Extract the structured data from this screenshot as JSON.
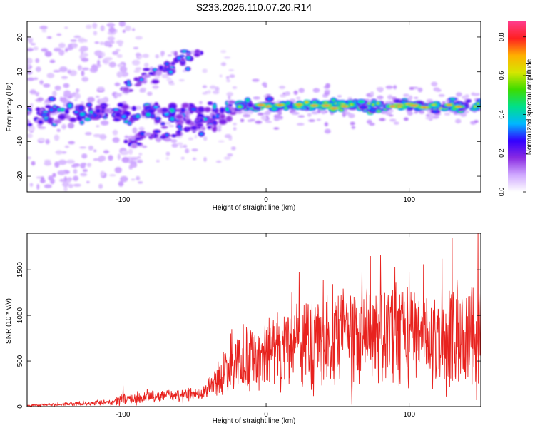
{
  "title": "S233.2026.110.07.20.R14",
  "chart_data": [
    {
      "type": "heatmap",
      "xlabel": "Height of straight line (km)",
      "ylabel": "Frequency (Hz)",
      "xlim": [
        -167,
        150
      ],
      "ylim": [
        -24.5,
        24.5
      ],
      "xticks": [
        -100,
        0,
        100
      ],
      "yticks": [
        -20,
        -10,
        0,
        10,
        20
      ],
      "colorbar": {
        "label": "Normalized spectral amplitude",
        "range": [
          0.0,
          0.88
        ],
        "ticks": [
          0.0,
          0.2,
          0.4,
          0.6,
          0.8
        ],
        "colors": [
          "#ffffff",
          "#cfa8ff",
          "#8a2be2",
          "#3300ff",
          "#00b7ff",
          "#00e08a",
          "#3ddc00",
          "#d6e600",
          "#ffb000",
          "#ff2020",
          "#ff3c8c"
        ]
      },
      "features": [
        {
          "label": "strong band (x from -20 to 150 km)",
          "x": [
            -20,
            150
          ],
          "y_center": 0.3,
          "peak_amplitude": 0.88
        },
        {
          "label": "diffuse band (x from -167 to -20 km)",
          "x": [
            -167,
            -20
          ],
          "y_center": -2,
          "peak_amplitude": 0.45
        },
        {
          "label": "rising branch",
          "from": [
            -100,
            5
          ],
          "to": [
            -45,
            17
          ],
          "peak_amplitude": 0.4
        },
        {
          "label": "falling branch",
          "from": [
            -100,
            -10
          ],
          "to": [
            -35,
            -5
          ],
          "peak_amplitude": 0.35
        }
      ]
    },
    {
      "type": "line",
      "xlabel": "Height of straight line (km)",
      "ylabel": "SNR (10 * v/v)",
      "xlim": [
        -167,
        150
      ],
      "ylim": [
        0,
        1900
      ],
      "xticks": [
        -100,
        0,
        100
      ],
      "yticks": [
        0,
        500,
        1000,
        1500
      ],
      "series": [
        {
          "color": "#e8221e",
          "envelope": {
            "x": [
              -167,
              -140,
              -110,
              -100,
              -80,
              -60,
              -45,
              -40,
              -30,
              -25,
              -20,
              -10,
              0,
              10,
              20,
              30,
              40,
              60,
              80,
              100,
              120,
              140,
              150
            ],
            "mean": [
              12,
              25,
              45,
              80,
              110,
              120,
              140,
              220,
              320,
              420,
              500,
              520,
              560,
              620,
              700,
              720,
              730,
              760,
              780,
              770,
              780,
              760,
              760
            ],
            "amplitude": [
              10,
              18,
              30,
              60,
              60,
              60,
              70,
              120,
              180,
              240,
              300,
              320,
              340,
              380,
              430,
              450,
              460,
              480,
              500,
              500,
              520,
              520,
              520
            ]
          },
          "peaks": [
            {
              "x": -100,
              "y": 230
            },
            {
              "x": -24,
              "y": 850
            },
            {
              "x": -8,
              "y": 780
            },
            {
              "x": 8,
              "y": 1030
            },
            {
              "x": 18,
              "y": 1250
            },
            {
              "x": 23,
              "y": 1470
            },
            {
              "x": 40,
              "y": 1390
            },
            {
              "x": 60,
              "y": 1350
            },
            {
              "x": 67,
              "y": 1520
            },
            {
              "x": 73,
              "y": 1650
            },
            {
              "x": 80,
              "y": 1660
            },
            {
              "x": 90,
              "y": 1530
            },
            {
              "x": 100,
              "y": 1470
            },
            {
              "x": 110,
              "y": 1560
            },
            {
              "x": 123,
              "y": 1620
            },
            {
              "x": 130,
              "y": 1850
            },
            {
              "x": 148,
              "y": 1910
            }
          ],
          "dips": [
            {
              "x": 60,
              "y": 20
            },
            {
              "x": 147,
              "y": 70
            }
          ]
        }
      ]
    }
  ]
}
